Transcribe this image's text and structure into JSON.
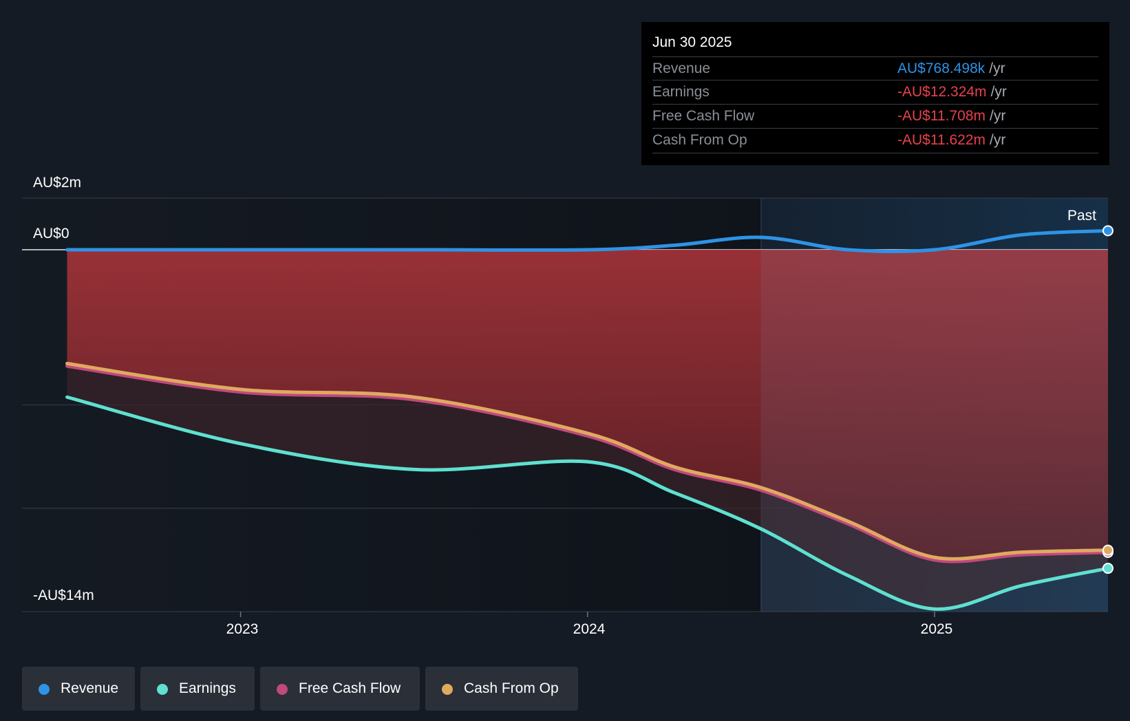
{
  "tooltip": {
    "date": "Jun 30 2025",
    "rows": [
      {
        "label": "Revenue",
        "value": "AU$768.498k",
        "unit": "/yr",
        "color": "#2e93e6"
      },
      {
        "label": "Earnings",
        "value": "-AU$12.324m",
        "unit": "/yr",
        "color": "#e5424d"
      },
      {
        "label": "Free Cash Flow",
        "value": "-AU$11.708m",
        "unit": "/yr",
        "color": "#e5424d"
      },
      {
        "label": "Cash From Op",
        "value": "-AU$11.622m",
        "unit": "/yr",
        "color": "#e5424d"
      }
    ]
  },
  "chart_data": {
    "type": "line",
    "title": "",
    "unit": "AU$m",
    "ylim": [
      -14,
      2
    ],
    "y_tick_labels": [
      "AU$2m",
      "AU$0",
      "-AU$14m"
    ],
    "x_tick_labels": [
      "2023",
      "2024",
      "2025"
    ],
    "past_label": "Past",
    "x_range": [
      2022.37,
      2025.5
    ],
    "forecast_start": 2024.5,
    "series": [
      {
        "name": "Revenue",
        "color": "#2e93e6",
        "x": [
          2022.5,
          2023.0,
          2023.5,
          2024.0,
          2024.25,
          2024.5,
          2024.75,
          2025.0,
          2025.25,
          2025.5
        ],
        "values": [
          0.0,
          0.0,
          0.0,
          0.0,
          0.18,
          0.5,
          0.0,
          0.0,
          0.6,
          0.768
        ]
      },
      {
        "name": "Earnings",
        "color": "#5fe0d0",
        "x": [
          2022.5,
          2023.0,
          2023.5,
          2024.0,
          2024.25,
          2024.5,
          2024.75,
          2025.0,
          2025.25,
          2025.5
        ],
        "values": [
          -5.7,
          -7.5,
          -8.5,
          -8.2,
          -9.4,
          -10.8,
          -12.6,
          -13.9,
          -13.0,
          -12.324
        ]
      },
      {
        "name": "Free Cash Flow",
        "color": "#c0497e",
        "x": [
          2022.5,
          2023.0,
          2023.5,
          2024.0,
          2024.25,
          2024.5,
          2024.75,
          2025.0,
          2025.25,
          2025.5
        ],
        "values": [
          -4.5,
          -5.5,
          -5.8,
          -7.2,
          -8.5,
          -9.3,
          -10.6,
          -12.0,
          -11.8,
          -11.708
        ]
      },
      {
        "name": "Cash From Op",
        "color": "#e0a960",
        "x": [
          2022.5,
          2023.0,
          2023.5,
          2024.0,
          2024.25,
          2024.5,
          2024.75,
          2025.0,
          2025.25,
          2025.5
        ],
        "values": [
          -4.4,
          -5.4,
          -5.7,
          -7.1,
          -8.4,
          -9.2,
          -10.5,
          -11.9,
          -11.7,
          -11.622
        ]
      }
    ],
    "legend": [
      "Revenue",
      "Earnings",
      "Free Cash Flow",
      "Cash From Op"
    ]
  }
}
